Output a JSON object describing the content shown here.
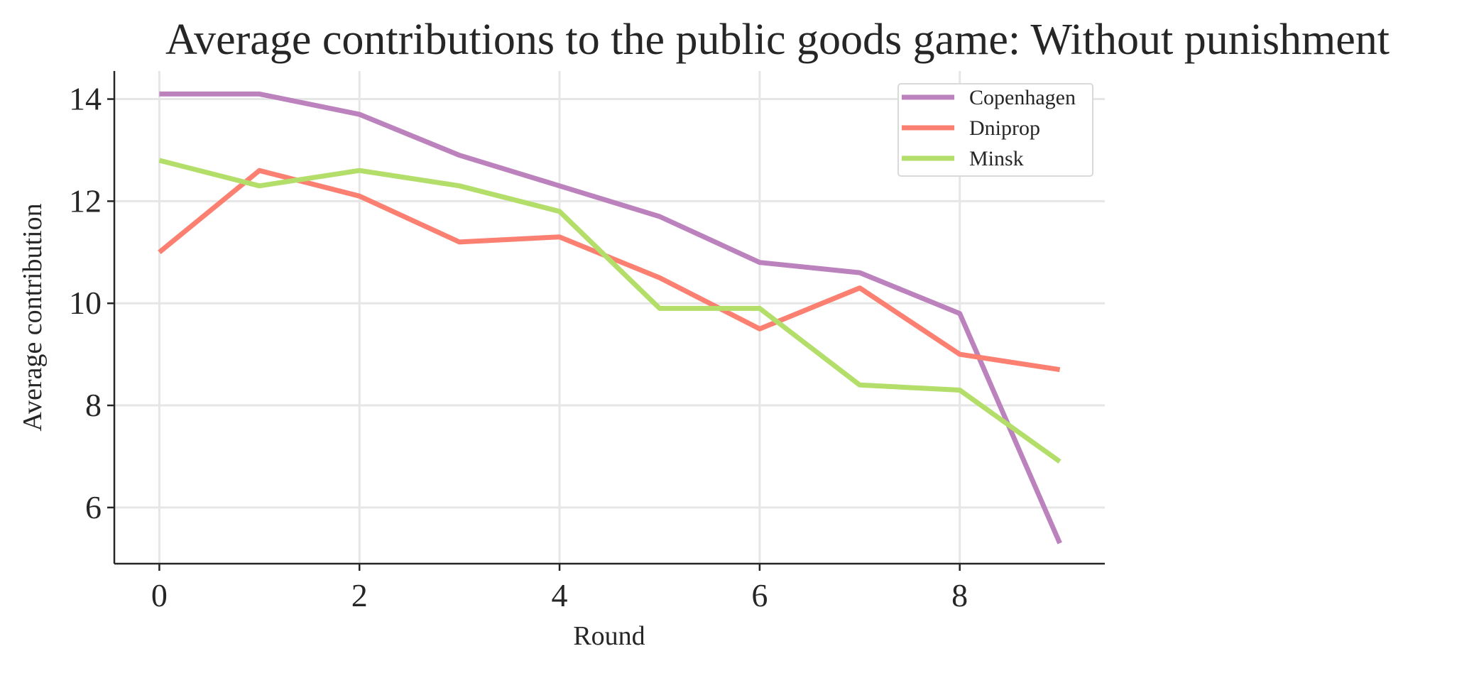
{
  "chart_data": {
    "type": "line",
    "title": "Average contributions to the public goods game: Without punishment",
    "xlabel": "Round",
    "ylabel": "Average contribution",
    "x": [
      0,
      1,
      2,
      3,
      4,
      5,
      6,
      7,
      8,
      9
    ],
    "xlim": [
      -0.45,
      9.45
    ],
    "ylim": [
      4.9,
      14.55
    ],
    "xticks": [
      0,
      2,
      4,
      6,
      8
    ],
    "yticks": [
      6,
      8,
      10,
      12,
      14
    ],
    "grid": true,
    "legend_position": "top-right",
    "series": [
      {
        "name": "Copenhagen",
        "color": "#bc82bd",
        "values": [
          14.1,
          14.1,
          13.7,
          12.9,
          12.3,
          11.7,
          10.8,
          10.6,
          9.8,
          5.3
        ]
      },
      {
        "name": "Dniprop",
        "color": "#fb8072",
        "values": [
          11.0,
          12.6,
          12.1,
          11.2,
          11.3,
          10.5,
          9.5,
          10.3,
          9.0,
          8.7
        ]
      },
      {
        "name": "Minsk",
        "color": "#b3de69",
        "values": [
          12.8,
          12.3,
          12.6,
          12.3,
          11.8,
          9.9,
          9.9,
          8.4,
          8.3,
          6.9
        ]
      }
    ]
  }
}
